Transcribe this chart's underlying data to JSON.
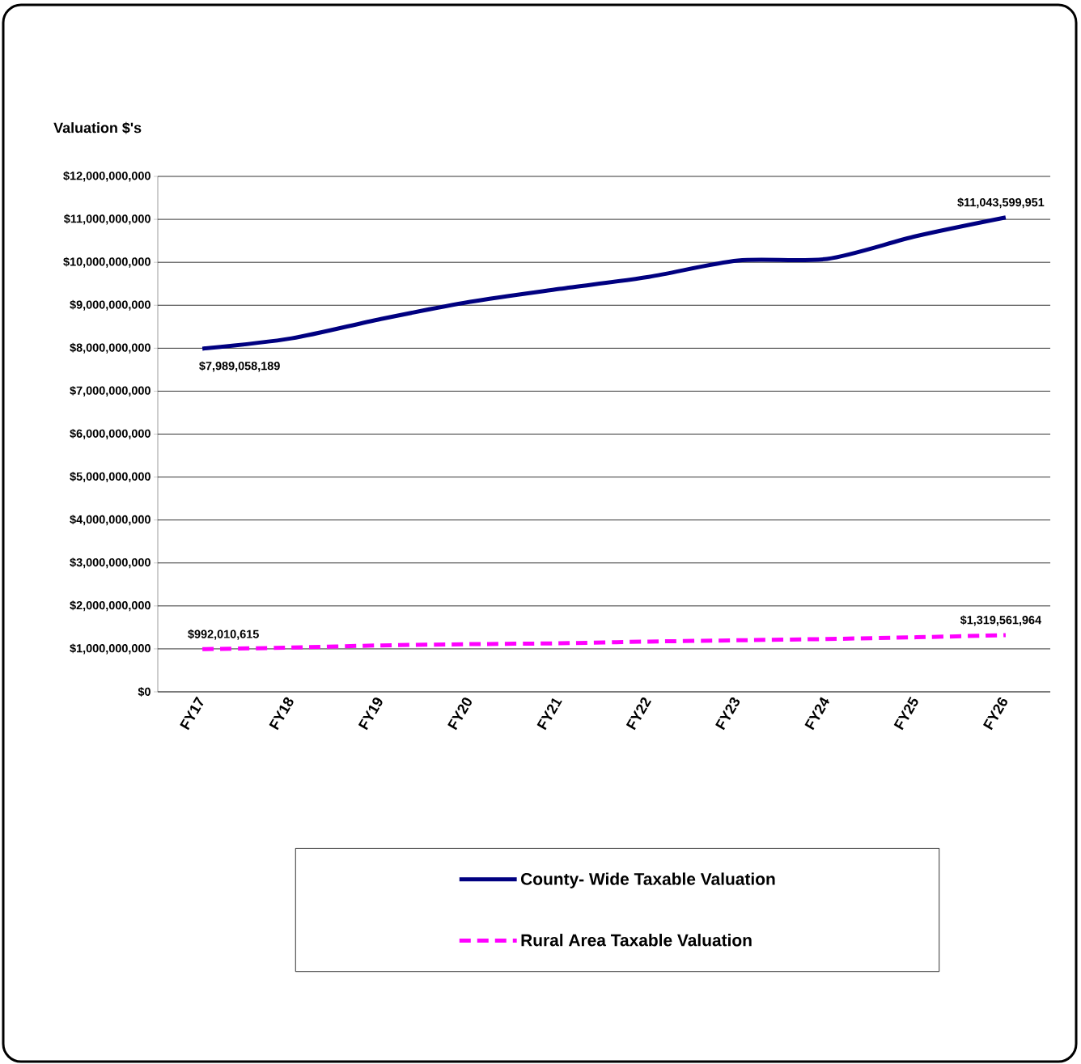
{
  "chart_data": {
    "type": "line",
    "ylabel": "Valuation $'s",
    "categories": [
      "FY17",
      "FY18",
      "FY19",
      "FY20",
      "FY21",
      "FY22",
      "FY23",
      "FY24",
      "FY25",
      "FY26"
    ],
    "series": [
      {
        "name": "County- Wide Taxable Valuation",
        "color": "#000080",
        "line_style": "solid",
        "values": [
          7989058189,
          8230000000,
          8680000000,
          9080000000,
          9380000000,
          9660000000,
          10040000000,
          10080000000,
          10610000000,
          11043599951
        ],
        "value_labels": [
          "$7,989,058,189",
          null,
          null,
          null,
          null,
          null,
          null,
          null,
          null,
          "$11,043,599,951"
        ]
      },
      {
        "name": "Rural Area Taxable Valuation",
        "color": "#ff00ff",
        "line_style": "dashed",
        "values": [
          992010615,
          1030000000,
          1080000000,
          1110000000,
          1130000000,
          1170000000,
          1200000000,
          1230000000,
          1270000000,
          1319561964
        ],
        "value_labels": [
          "$992,010,615",
          null,
          null,
          null,
          null,
          null,
          null,
          null,
          null,
          "$1,319,561,964"
        ]
      }
    ],
    "ylim": [
      0,
      12000000000
    ],
    "yticks": [
      {
        "value": 0,
        "label": "$0"
      },
      {
        "value": 1000000000,
        "label": "$1,000,000,000"
      },
      {
        "value": 2000000000,
        "label": "$2,000,000,000"
      },
      {
        "value": 3000000000,
        "label": "$3,000,000,000"
      },
      {
        "value": 4000000000,
        "label": "$4,000,000,000"
      },
      {
        "value": 5000000000,
        "label": "$5,000,000,000"
      },
      {
        "value": 6000000000,
        "label": "$6,000,000,000"
      },
      {
        "value": 7000000000,
        "label": "$7,000,000,000"
      },
      {
        "value": 8000000000,
        "label": "$8,000,000,000"
      },
      {
        "value": 9000000000,
        "label": "$9,000,000,000"
      },
      {
        "value": 10000000000,
        "label": "$10,000,000,000"
      },
      {
        "value": 11000000000,
        "label": "$11,000,000,000"
      },
      {
        "value": 12000000000,
        "label": "$12,000,000,000"
      }
    ],
    "grid": "y",
    "legend": "bottom",
    "marker": "none"
  }
}
